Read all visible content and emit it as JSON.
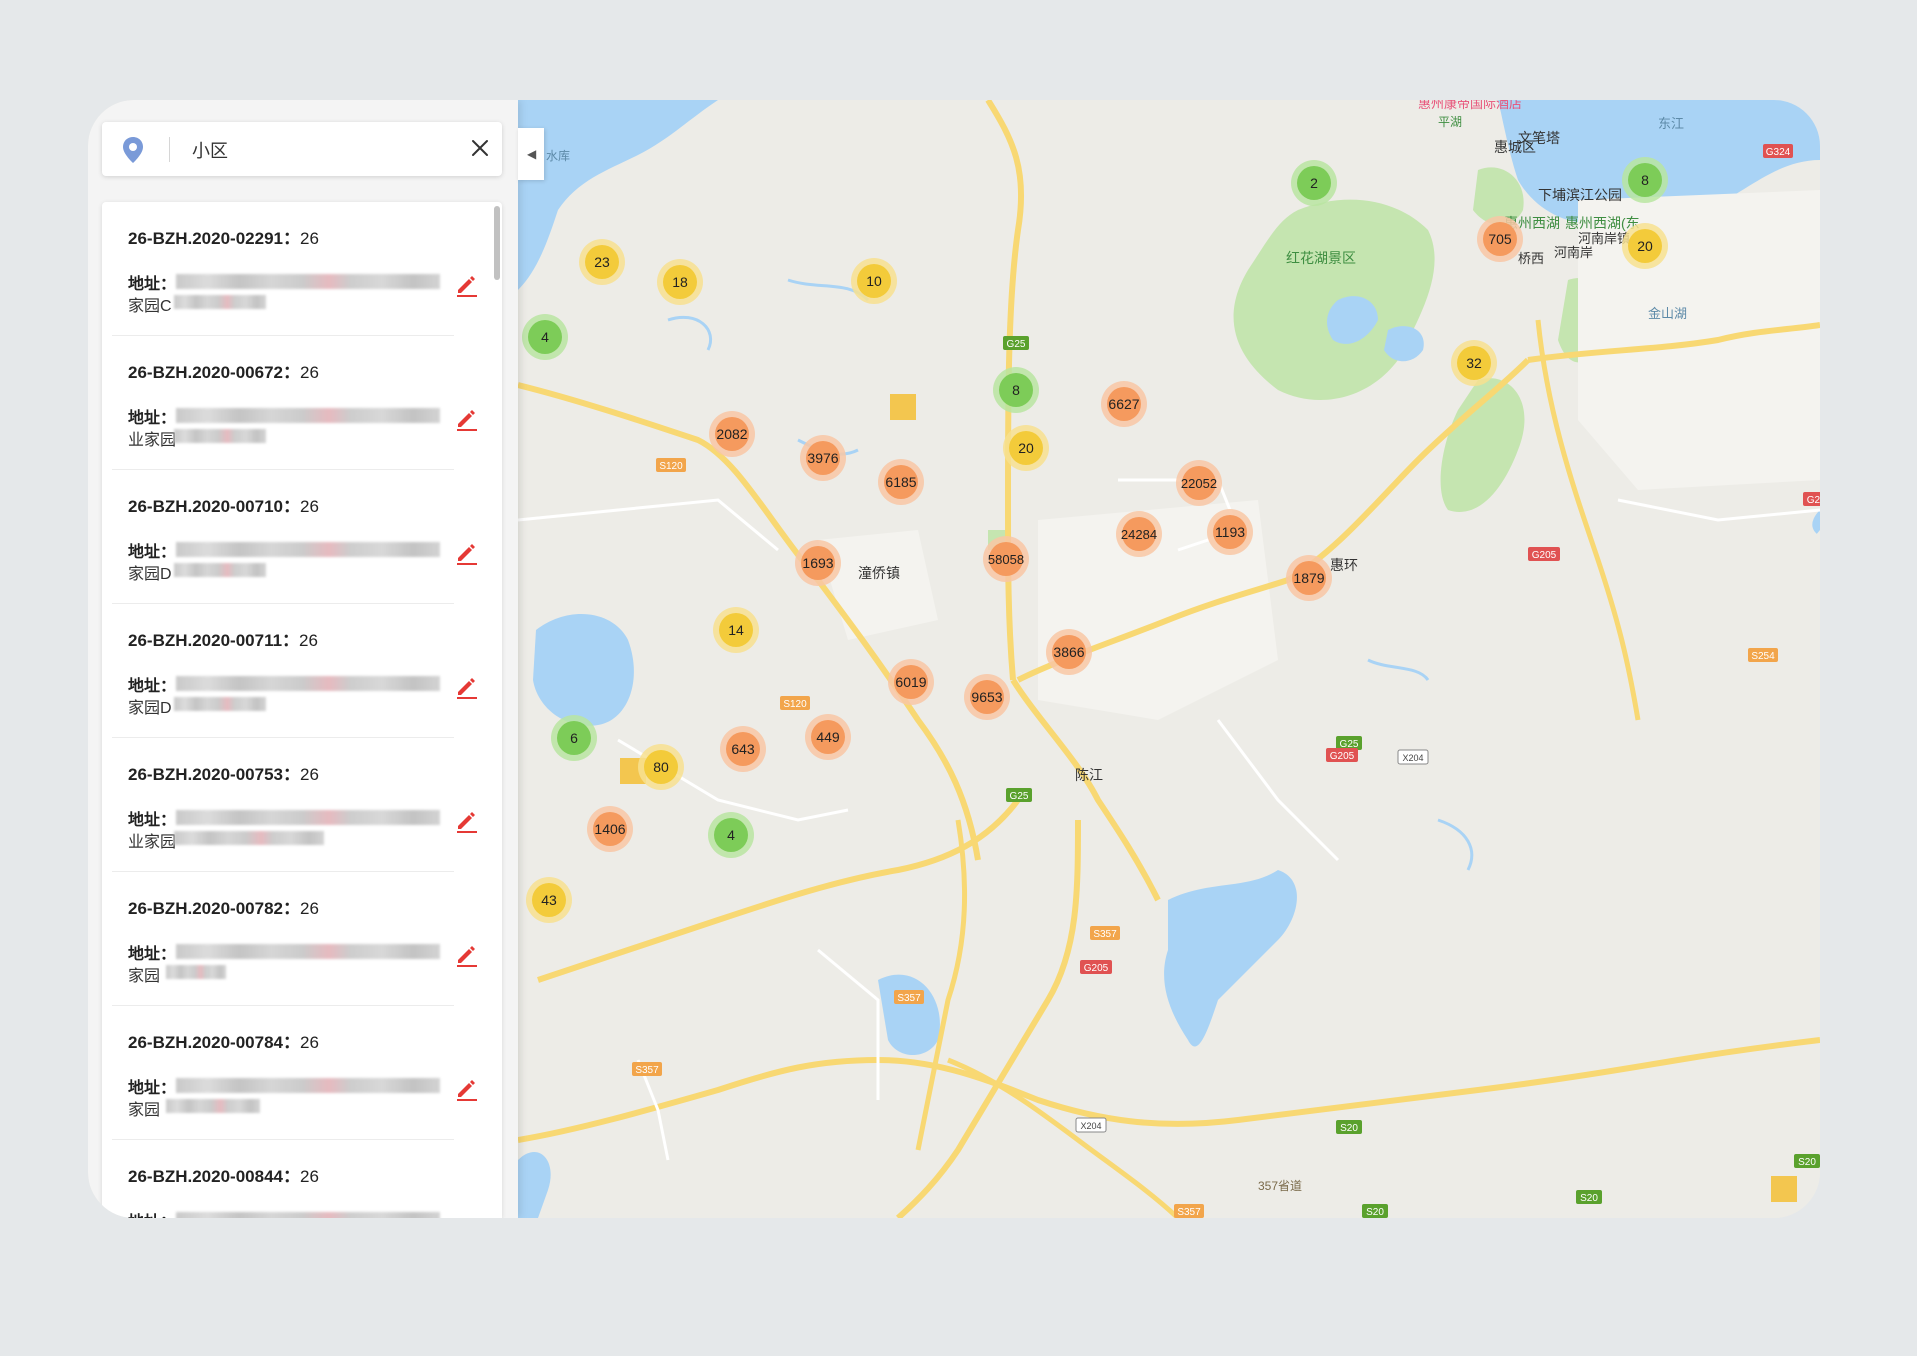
{
  "search": {
    "query": "小区",
    "icons": {
      "location": "location-pin-icon",
      "clear": "close-icon"
    }
  },
  "results": [
    {
      "code": "26-BZH.2020-02291",
      "count": "26",
      "address_label": "地址：",
      "address_tail": "家园C"
    },
    {
      "code": "26-BZH.2020-00672",
      "count": "26",
      "address_label": "地址：",
      "address_tail": "业家园"
    },
    {
      "code": "26-BZH.2020-00710",
      "count": "26",
      "address_label": "地址：",
      "address_tail": "家园D"
    },
    {
      "code": "26-BZH.2020-00711",
      "count": "26",
      "address_label": "地址：",
      "address_tail": "家园D"
    },
    {
      "code": "26-BZH.2020-00753",
      "count": "26",
      "address_label": "地址：",
      "address_tail": "业家园"
    },
    {
      "code": "26-BZH.2020-00782",
      "count": "26",
      "address_label": "地址：",
      "address_tail": "家园"
    },
    {
      "code": "26-BZH.2020-00784",
      "count": "26",
      "address_label": "地址：",
      "address_tail": "家园"
    },
    {
      "code": "26-BZH.2020-00844",
      "count": "26",
      "address_label": "地址：",
      "address_tail": ""
    }
  ],
  "panel_toggle": {
    "glyph": "◀",
    "icon": "collapse-arrow-icon"
  },
  "colors": {
    "cluster_green": "#7dcc58",
    "cluster_yellow": "#f3cb3a",
    "cluster_orange": "#f59a5e",
    "water": "#a9d3f5",
    "park": "#c5e5b0",
    "highway": "#f8d873",
    "edit_icon": "#e53935"
  },
  "map": {
    "place_labels": [
      "惠州西湖",
      "惠城区",
      "文笔塔",
      "下埔滨江公园",
      "惠州西湖(东",
      "红花湖景区",
      "桥西",
      "河南岸",
      "河南岸镇",
      "东江",
      "惠州康帝国际酒店",
      "平湖",
      "金山湖",
      "潼侨镇",
      "惠环",
      "陈江",
      "水库",
      "357省道"
    ],
    "road_labels": [
      "G25",
      "G205",
      "S120",
      "S357",
      "S20",
      "X204",
      "G324",
      "S254"
    ],
    "clusters": [
      {
        "count": "2",
        "level": "green"
      },
      {
        "count": "8",
        "level": "green"
      },
      {
        "count": "705",
        "level": "orange"
      },
      {
        "count": "20",
        "level": "yellow"
      },
      {
        "count": "23",
        "level": "yellow"
      },
      {
        "count": "18",
        "level": "yellow"
      },
      {
        "count": "10",
        "level": "yellow"
      },
      {
        "count": "4",
        "level": "green"
      },
      {
        "count": "32",
        "level": "yellow"
      },
      {
        "count": "8",
        "level": "green"
      },
      {
        "count": "6627",
        "level": "orange"
      },
      {
        "count": "2082",
        "level": "orange"
      },
      {
        "count": "3976",
        "level": "orange"
      },
      {
        "count": "6185",
        "level": "orange"
      },
      {
        "count": "20",
        "level": "yellow"
      },
      {
        "count": "22052",
        "level": "orange"
      },
      {
        "count": "24284",
        "level": "orange"
      },
      {
        "count": "1193",
        "level": "orange"
      },
      {
        "count": "58058",
        "level": "orange"
      },
      {
        "count": "1693",
        "level": "orange"
      },
      {
        "count": "1879",
        "level": "orange"
      },
      {
        "count": "14",
        "level": "yellow"
      },
      {
        "count": "3866",
        "level": "orange"
      },
      {
        "count": "6019",
        "level": "orange"
      },
      {
        "count": "9653",
        "level": "orange"
      },
      {
        "count": "6",
        "level": "green"
      },
      {
        "count": "80",
        "level": "yellow"
      },
      {
        "count": "643",
        "level": "orange"
      },
      {
        "count": "449",
        "level": "orange"
      },
      {
        "count": "1406",
        "level": "orange"
      },
      {
        "count": "4",
        "level": "green"
      },
      {
        "count": "43",
        "level": "yellow"
      }
    ]
  }
}
